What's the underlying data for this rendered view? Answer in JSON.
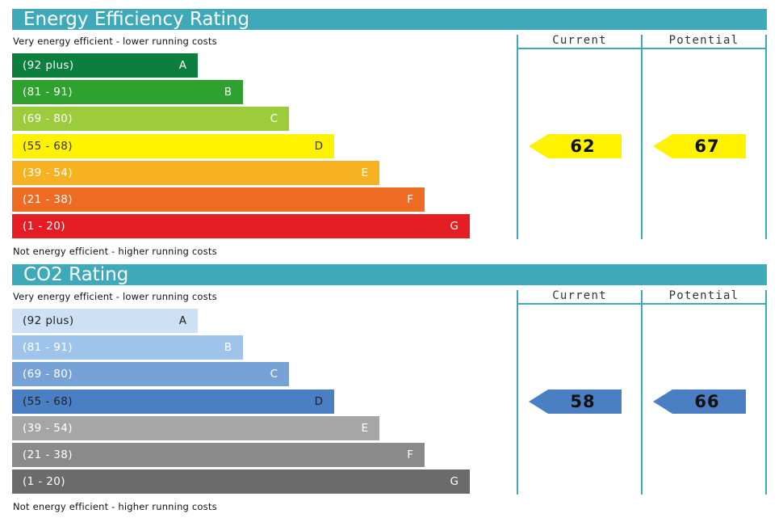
{
  "chart_data": [
    {
      "type": "table",
      "title": "Energy Efficiency Rating",
      "top_caption": "Very energy efficient - lower running costs",
      "bottom_caption": "Not energy efficient - higher running costs",
      "columns": [
        "Current",
        "Potential"
      ],
      "bands": [
        {
          "range": "(92 plus)",
          "letter": "A",
          "color": "#0c7f3e",
          "text_color": "#ffffff"
        },
        {
          "range": "(81 - 91)",
          "letter": "B",
          "color": "#2ea12e",
          "text_color": "#ffffff"
        },
        {
          "range": "(69 - 80)",
          "letter": "C",
          "color": "#9ccb3b",
          "text_color": "#ffffff"
        },
        {
          "range": "(55 - 68)",
          "letter": "D",
          "color": "#fff200",
          "text_color": "#333333"
        },
        {
          "range": "(39 - 54)",
          "letter": "E",
          "color": "#f6b220",
          "text_color": "#ffffff"
        },
        {
          "range": "(21 - 38)",
          "letter": "F",
          "color": "#ee6b23",
          "text_color": "#ffffff"
        },
        {
          "range": "(1 - 20)",
          "letter": "G",
          "color": "#e31d23",
          "text_color": "#ffffff"
        }
      ],
      "current": {
        "value": 62,
        "band": "D",
        "color": "#fff200",
        "text_color": "#111111"
      },
      "potential": {
        "value": 67,
        "band": "D",
        "color": "#fff200",
        "text_color": "#111111"
      }
    },
    {
      "type": "table",
      "title": "CO2 Rating",
      "top_caption": "Very energy efficient - lower running costs",
      "bottom_caption": "Not energy efficient - higher running costs",
      "columns": [
        "Current",
        "Potential"
      ],
      "bands": [
        {
          "range": "(92 plus)",
          "letter": "A",
          "color": "#cde0f4",
          "text_color": "#222222"
        },
        {
          "range": "(81 - 91)",
          "letter": "B",
          "color": "#9fc4ec",
          "text_color": "#ffffff"
        },
        {
          "range": "(69 - 80)",
          "letter": "C",
          "color": "#76a2d6",
          "text_color": "#ffffff"
        },
        {
          "range": "(55 - 68)",
          "letter": "D",
          "color": "#4a7fc4",
          "text_color": "#222222"
        },
        {
          "range": "(39 - 54)",
          "letter": "E",
          "color": "#a6a6a6",
          "text_color": "#ffffff"
        },
        {
          "range": "(21 - 38)",
          "letter": "F",
          "color": "#8a8a8a",
          "text_color": "#ffffff"
        },
        {
          "range": "(1 - 20)",
          "letter": "G",
          "color": "#6b6b6b",
          "text_color": "#ffffff"
        }
      ],
      "current": {
        "value": 58,
        "band": "D",
        "color": "#4a7fc4",
        "text_color": "#111111"
      },
      "potential": {
        "value": 66,
        "band": "D",
        "color": "#4a7fc4",
        "text_color": "#111111"
      }
    }
  ]
}
